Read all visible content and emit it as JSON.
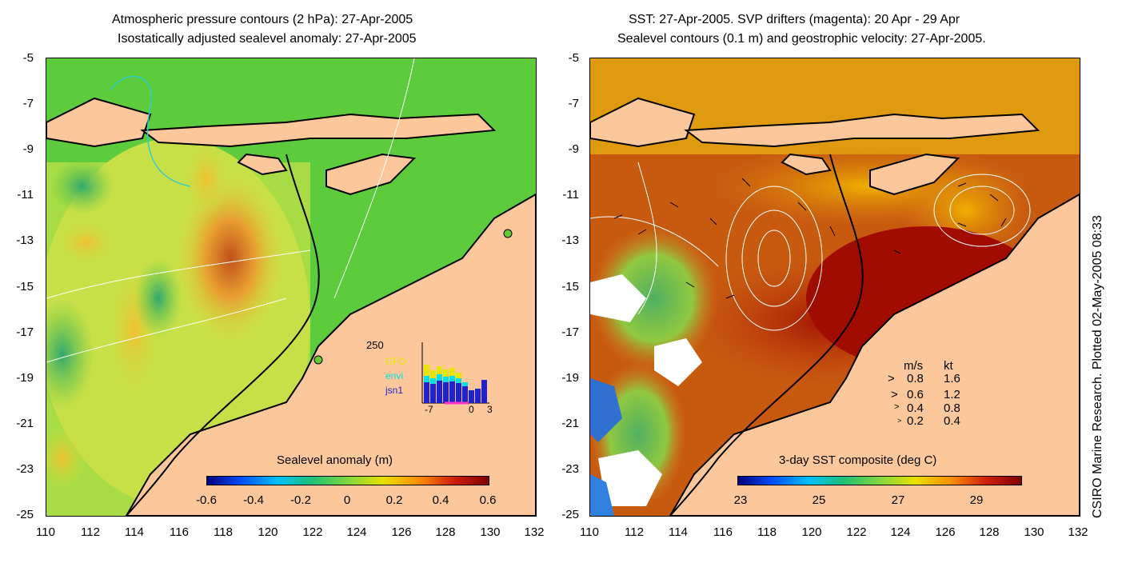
{
  "left": {
    "title1": "Atmospheric pressure contours (2 hPa): 27-Apr-2005",
    "title2": "Isostatically adjusted sealevel anomaly: 27-Apr-2005",
    "colorbar_title": "Sealevel anomaly (m)",
    "colorbar_ticks": [
      "-0.6",
      "-0.4",
      "-0.2",
      "0",
      "0.2",
      "0.4",
      "0.6"
    ],
    "inset": {
      "ymax": "250",
      "legend": [
        "GFO",
        "envi",
        "jsn1"
      ],
      "x_ticks": [
        "-7",
        "0",
        "3"
      ],
      "colors": {
        "GFO": "#e6e600",
        "envi": "#00e0e0",
        "jsn1": "#2222cc"
      }
    }
  },
  "right": {
    "title1": "SST: 27-Apr-2005. SVP drifters (magenta): 20 Apr - 29 Apr",
    "title2": "Sealevel contours (0.1 m) and geostrophic velocity: 27-Apr-2005.",
    "colorbar_title": "3-day SST composite (deg C)",
    "colorbar_ticks": [
      "23",
      "25",
      "27",
      "29"
    ],
    "velocity_legend": {
      "header_ms": "m/s",
      "header_kt": "kt",
      "rows": [
        {
          "ms": "0.8",
          "kt": "1.6"
        },
        {
          "ms": "0.6",
          "kt": "1.2"
        },
        {
          "ms": "0.4",
          "kt": "0.8"
        },
        {
          "ms": "0.2",
          "kt": "0.4"
        }
      ]
    }
  },
  "y_ticks": [
    "-5",
    "-7",
    "-9",
    "-11",
    "-13",
    "-15",
    "-17",
    "-19",
    "-21",
    "-23",
    "-25"
  ],
  "x_ticks": [
    "110",
    "112",
    "114",
    "116",
    "118",
    "120",
    "122",
    "124",
    "126",
    "128",
    "130",
    "132"
  ],
  "credit": "CSIRO Marine Research. Plotted 02-May-2005 08:33",
  "colors": {
    "land": "#fcc89b",
    "coast": "#000000"
  }
}
